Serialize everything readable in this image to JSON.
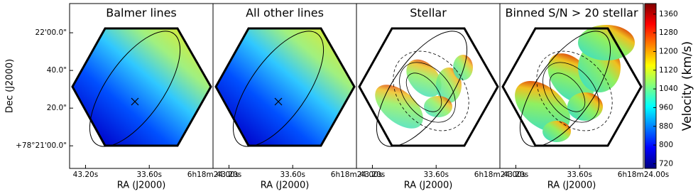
{
  "chart_data": [
    {
      "type": "map",
      "title": "Balmer lines",
      "xlabel": "RA (J2000)",
      "ylabel": "Dec (J2000)",
      "xlim": [
        45.6,
        24.0
      ],
      "xticks": [
        {
          "value": 43.2,
          "label": "43.20s"
        },
        {
          "value": 33.6,
          "label": "33.60s"
        },
        {
          "value": 24.0,
          "label": "6h18m24.00s"
        }
      ],
      "ylim": [
        -12,
        75.5
      ],
      "yticks": [
        {
          "value": 0,
          "label": "+78°21'00.0\""
        },
        {
          "value": 20,
          "label": "20.0\""
        },
        {
          "value": 40,
          "label": "40.0\""
        },
        {
          "value": 60,
          "label": "22'00.0\""
        }
      ]
    },
    {
      "type": "map",
      "title": "All other lines",
      "xlabel": "RA (J2000)",
      "xlim": [
        45.6,
        24.0
      ],
      "xticks": [
        {
          "value": 43.2,
          "label": "43.20s"
        },
        {
          "value": 33.6,
          "label": "33.60s"
        },
        {
          "value": 24.0,
          "label": "6h18m24.00s"
        }
      ]
    },
    {
      "type": "map",
      "title": "Stellar",
      "xlabel": "RA (J2000)",
      "xlim": [
        45.6,
        24.0
      ],
      "xticks": [
        {
          "value": 43.2,
          "label": "43.20s"
        },
        {
          "value": 33.6,
          "label": "33.60s"
        },
        {
          "value": 24.0,
          "label": "6h18m24.00s"
        }
      ]
    },
    {
      "type": "map",
      "title": "Binned S/N > 20 stellar",
      "xlabel": "RA (J2000)",
      "xlim": [
        45.6,
        24.0
      ],
      "xticks": [
        {
          "value": 43.2,
          "label": "43.20s"
        },
        {
          "value": 33.6,
          "label": "33.60s"
        },
        {
          "value": 24.0,
          "label": "6h18m24.00s"
        }
      ],
      "colorbar": {
        "label": "Velocity (km/s)",
        "lim": [
          700,
          1405
        ],
        "ticks": [
          720,
          800,
          880,
          960,
          1040,
          1120,
          1200,
          1280,
          1360
        ]
      }
    }
  ]
}
